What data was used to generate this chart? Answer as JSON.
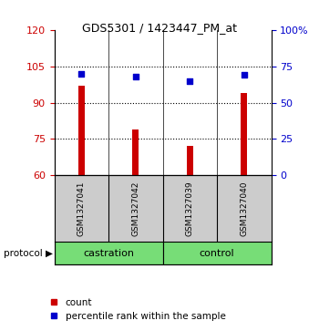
{
  "title": "GDS5301 / 1423447_PM_at",
  "samples": [
    "GSM1327041",
    "GSM1327042",
    "GSM1327039",
    "GSM1327040"
  ],
  "bar_values": [
    97,
    79,
    72,
    94
  ],
  "dot_values": [
    70,
    68,
    65,
    69
  ],
  "ylim_left": [
    60,
    120
  ],
  "ylim_right": [
    0,
    100
  ],
  "yticks_left": [
    60,
    75,
    90,
    105,
    120
  ],
  "yticks_right": [
    0,
    25,
    50,
    75,
    100
  ],
  "yticklabels_right": [
    "0",
    "25",
    "50",
    "75",
    "100%"
  ],
  "dotted_lines": [
    75,
    90,
    105
  ],
  "bar_color": "#cc0000",
  "dot_color": "#0000cc",
  "bar_width": 0.12,
  "sample_bg_color": "#cccccc",
  "group_label_color": "#77dd77",
  "legend_bar_label": "count",
  "legend_dot_label": "percentile rank within the sample",
  "left_tick_color": "#cc0000",
  "right_tick_color": "#0000cc",
  "group_spans": [
    [
      0,
      1,
      "castration"
    ],
    [
      2,
      3,
      "control"
    ]
  ]
}
